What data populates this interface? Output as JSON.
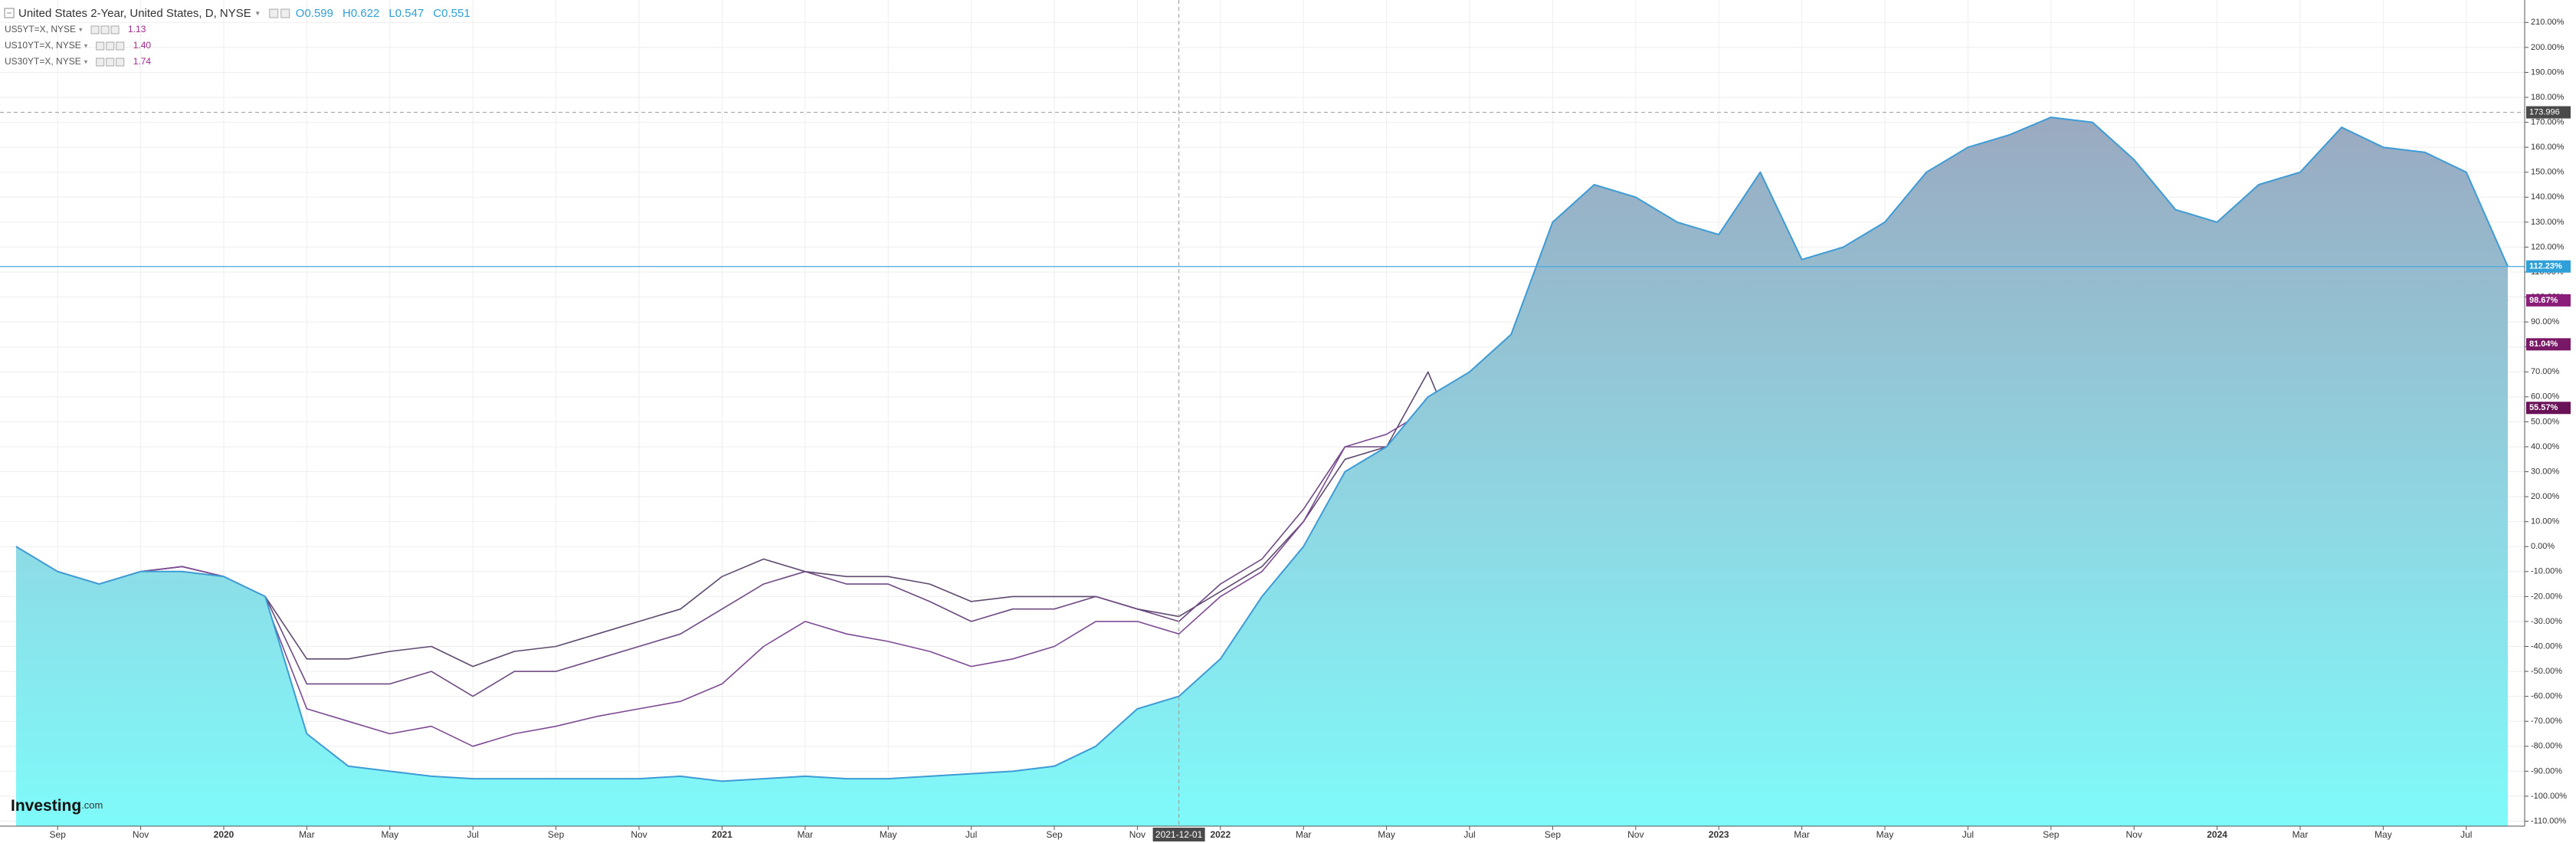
{
  "chart_data": {
    "type": "line",
    "header": {
      "symbol": "United States 2-Year, United States, D, NYSE",
      "ohlc": [
        {
          "label": "O",
          "value": "0.599"
        },
        {
          "label": "H",
          "value": "0.622"
        },
        {
          "label": "L",
          "value": "0.547"
        },
        {
          "label": "C",
          "value": "0.551"
        }
      ]
    },
    "brand": "Investing",
    "brand_suffix": ".com",
    "categories": [
      null,
      "Sep",
      null,
      "Nov",
      null,
      "2020",
      null,
      "Mar",
      null,
      "May",
      null,
      "Jul",
      null,
      "Sep",
      null,
      "Nov",
      null,
      "2021",
      null,
      "Mar",
      null,
      "May",
      null,
      "Jul",
      null,
      "Sep",
      null,
      "Nov",
      null,
      "2022",
      null,
      "Mar",
      null,
      "May",
      null,
      "Jul",
      null,
      "Sep",
      null,
      "Nov",
      null,
      "2023",
      null,
      "Mar",
      null,
      "May",
      null,
      "Jul",
      null,
      "Sep",
      null,
      "Nov",
      null,
      "2024",
      null,
      "Mar",
      null,
      "May",
      null,
      "Jul",
      null
    ],
    "series": [
      {
        "name": "United States 2-Year, United States, D, NYSE",
        "area": true,
        "color": "#3d9bd6",
        "label_bg": "#2f9fd8",
        "last_label": "112.23%",
        "values": [
          0,
          -10,
          -15,
          -10,
          -10,
          -12,
          -20,
          -75,
          -88,
          -90,
          -92,
          -93,
          -93,
          -93,
          -93,
          -93,
          -92,
          -94,
          -93,
          -92,
          -93,
          -93,
          -92,
          -91,
          -90,
          -88,
          -80,
          -65,
          -60,
          -45,
          -20,
          0,
          30,
          40,
          60,
          70,
          85,
          130,
          145,
          140,
          130,
          125,
          150,
          115,
          120,
          130,
          150,
          160,
          165,
          172,
          170,
          155,
          135,
          130,
          145,
          150,
          168,
          160,
          158,
          150,
          112.23
        ]
      },
      {
        "name": "US5YT=X, NYSE",
        "quote": "1.13",
        "color": "#7d4b94",
        "label_bg": "#8a1e78",
        "last_label": "98.67%",
        "values": [
          0,
          -10,
          -15,
          -10,
          -8,
          -12,
          -22,
          -65,
          -70,
          -75,
          -72,
          -80,
          -75,
          -72,
          -68,
          -65,
          -62,
          -55,
          -40,
          -30,
          -35,
          -38,
          -42,
          -48,
          -45,
          -40,
          -30,
          -30,
          -35,
          -20,
          -10,
          10,
          40,
          45,
          55,
          60,
          70,
          110,
          125,
          115,
          105,
          100,
          120,
          90,
          85,
          95,
          110,
          125,
          130,
          140,
          155,
          135,
          110,
          105,
          115,
          120,
          140,
          130,
          125,
          120,
          98.67
        ]
      },
      {
        "name": "US10YT=X, NYSE",
        "quote": "1.40",
        "color": "#6d4a82",
        "label_bg": "#7a1868",
        "last_label": "81.04%",
        "values": [
          0,
          -10,
          -15,
          -10,
          -8,
          -12,
          -20,
          -55,
          -55,
          -55,
          -50,
          -60,
          -50,
          -50,
          -45,
          -40,
          -35,
          -25,
          -15,
          -10,
          -15,
          -15,
          -22,
          -30,
          -25,
          -25,
          -20,
          -25,
          -30,
          -15,
          -5,
          15,
          40,
          40,
          55,
          45,
          55,
          80,
          100,
          85,
          80,
          75,
          85,
          70,
          65,
          70,
          75,
          85,
          95,
          105,
          115,
          95,
          80,
          80,
          90,
          90,
          105,
          95,
          90,
          88,
          81.04
        ]
      },
      {
        "name": "US30YT=X, NYSE",
        "quote": "1.74",
        "color": "#5e4a6e",
        "label_bg": "#6a1258",
        "last_label": "55.57%",
        "values": [
          0,
          -10,
          -15,
          -10,
          -8,
          -12,
          -20,
          -45,
          -45,
          -42,
          -40,
          -48,
          -42,
          -40,
          -35,
          -30,
          -25,
          -12,
          -5,
          -10,
          -12,
          -12,
          -15,
          -22,
          -20,
          -20,
          -20,
          -25,
          -28,
          -18,
          -8,
          10,
          35,
          40,
          70,
          30,
          35,
          50,
          65,
          55,
          50,
          40,
          50,
          40,
          40,
          45,
          45,
          55,
          60,
          65,
          80,
          60,
          50,
          50,
          60,
          60,
          70,
          65,
          60,
          65,
          55.57
        ]
      }
    ],
    "ylim": [
      -112,
      219
    ],
    "yticks": [
      {
        "value": 210,
        "label": "210.00%"
      },
      {
        "value": 200,
        "label": "200.00%"
      },
      {
        "value": 190,
        "label": "190.00%"
      },
      {
        "value": 180,
        "label": "180.00%"
      },
      {
        "value": 170,
        "label": "170.00%"
      },
      {
        "value": 160,
        "label": "160.00%"
      },
      {
        "value": 150,
        "label": "150.00%"
      },
      {
        "value": 140,
        "label": "140.00%"
      },
      {
        "value": 130,
        "label": "130.00%"
      },
      {
        "value": 120,
        "label": "120.00%"
      },
      {
        "value": 110,
        "label": "110.00%"
      },
      {
        "value": 100,
        "label": "100.00%"
      },
      {
        "value": 90,
        "label": "90.00%"
      },
      {
        "value": 80,
        "label": "80.00%"
      },
      {
        "value": 70,
        "label": "70.00%"
      },
      {
        "value": 60,
        "label": "60.00%"
      },
      {
        "value": 50,
        "label": "50.00%"
      },
      {
        "value": 40,
        "label": "40.00%"
      },
      {
        "value": 30,
        "label": "30.00%"
      },
      {
        "value": 20,
        "label": "20.00%"
      },
      {
        "value": 10,
        "label": "10.00%"
      },
      {
        "value": 0,
        "label": "0.00%"
      },
      {
        "value": -10,
        "label": "-10.00%"
      },
      {
        "value": -20,
        "label": "-20.00%"
      },
      {
        "value": -30,
        "label": "-30.00%"
      },
      {
        "value": -40,
        "label": "-40.00%"
      },
      {
        "value": -50,
        "label": "-50.00%"
      },
      {
        "value": -60,
        "label": "-60.00%"
      },
      {
        "value": -70,
        "label": "-70.00%"
      },
      {
        "value": -80,
        "label": "-80.00%"
      },
      {
        "value": -90,
        "label": "-90.00%"
      },
      {
        "value": -100,
        "label": "-100.00%"
      },
      {
        "value": -110,
        "label": "-110.00%"
      }
    ],
    "grid": true,
    "crosshair": {
      "x": "2021-12-01",
      "y": 173.996
    }
  }
}
